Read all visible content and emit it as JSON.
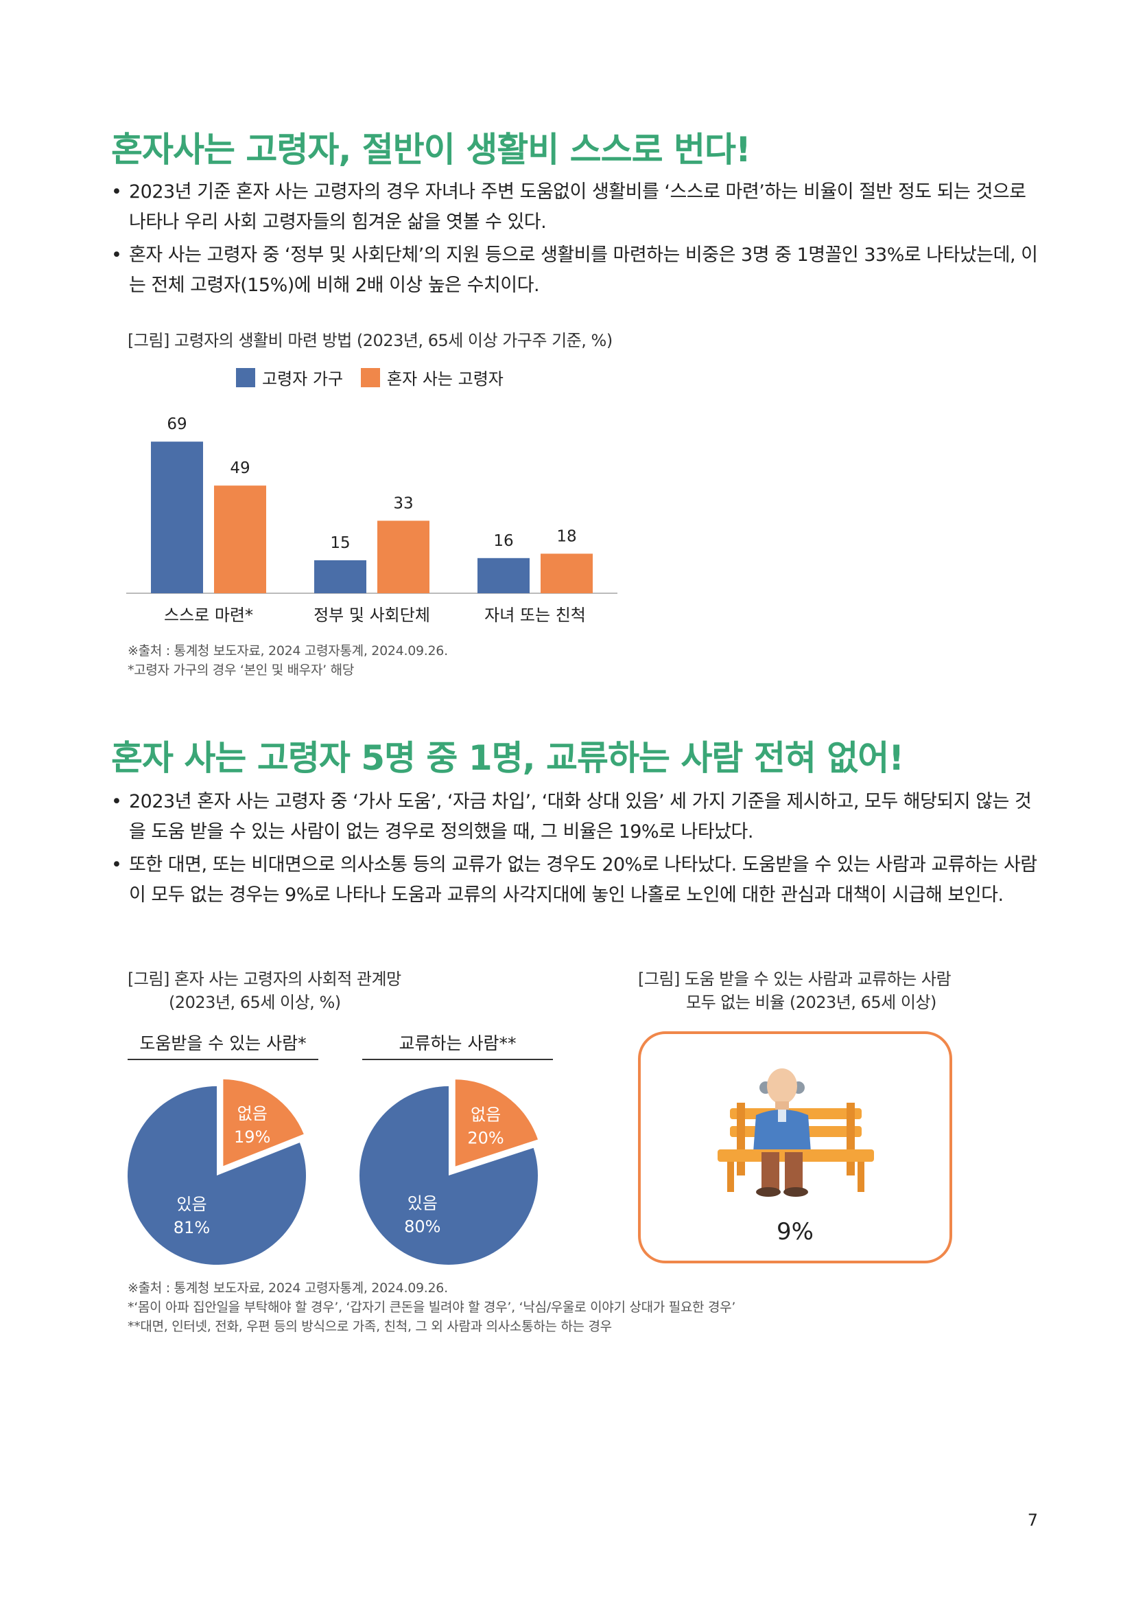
{
  "section1": {
    "heading": "혼자사는 고령자, 절반이 생활비 스스로 번다!",
    "bullets": [
      "2023년 기준 혼자 사는 고령자의 경우 자녀나 주변 도움없이 생활비를 ‘스스로 마련’하는 비율이 절반 정도 되는 것으로 나타나 우리 사회 고령자들의 힘겨운 삶을 엿볼 수 있다.",
      "혼자 사는 고령자 중 ‘정부 및 사회단체’의 지원 등으로 생활비를 마련하는 비중은 3명 중 1명꼴인 33%로 나타났는데, 이는 전체 고령자(15%)에 비해 2배 이상 높은 수치이다."
    ],
    "figure_caption": "[그림] 고령자의 생활비 마련 방법 (2023년, 65세 이상 가구주 기준, %)",
    "notes": [
      "※출처 : 통계청 보도자료, 2024 고령자통계, 2024.09.26.",
      "*고령자 가구의 경우 ‘본인 및 배우자’ 해당"
    ]
  },
  "chart_data": [
    {
      "type": "bar",
      "categories": [
        "스스로 마련*",
        "정부 및 사회단체",
        "자녀 또는 친척"
      ],
      "series": [
        {
          "name": "고령자 가구",
          "values": [
            69,
            15,
            16
          ],
          "color": "#4a6ea8"
        },
        {
          "name": "혼자 사는 고령자",
          "values": [
            49,
            33,
            18
          ],
          "color": "#f0874a"
        }
      ],
      "ylim": [
        0,
        75
      ],
      "legend": "top",
      "grid": false
    },
    {
      "type": "pie",
      "title": "도움받을 수 있는 사람*",
      "slices": [
        {
          "label": "없음",
          "value": 19,
          "text": "19%",
          "color": "#f0874a"
        },
        {
          "label": "있음",
          "value": 81,
          "text": "81%",
          "color": "#4a6ea8"
        }
      ]
    },
    {
      "type": "pie",
      "title": "교류하는 사람**",
      "slices": [
        {
          "label": "없음",
          "value": 20,
          "text": "20%",
          "color": "#f0874a"
        },
        {
          "label": "있음",
          "value": 80,
          "text": "80%",
          "color": "#4a6ea8"
        }
      ]
    }
  ],
  "section2": {
    "heading": "혼자 사는 고령자 5명 중 1명, 교류하는 사람 전혀 없어!",
    "bullets": [
      "2023년 혼자 사는 고령자 중 ‘가사 도움’, ‘자금 차입’, ‘대화 상대 있음’ 세 가지 기준을 제시하고, 모두 해당되지 않는 것을 도움 받을 수 있는 사람이 없는 경우로 정의했을 때, 그 비율은 19%로 나타났다.",
      "또한 대면, 또는 비대면으로 의사소통 등의 교류가 없는 경우도 20%로 나타났다. 도움받을 수 있는 사람과 교류하는 사람이 모두 없는 경우는 9%로 나타나 도움과 교류의 사각지대에 놓인 나홀로 노인에 대한 관심과 대책이 시급해 보인다."
    ],
    "fig_left_caption": [
      "[그림] 혼자 사는 고령자의 사회적 관계망",
      "(2023년, 65세 이상, %)"
    ],
    "fig_right_caption": [
      "[그림] 도움 받을 수 있는 사람과 교류하는 사람",
      "모두 없는 비율 (2023년, 65세 이상)"
    ],
    "card_value": "9%",
    "notes": [
      "※출처 : 통계청 보도자료, 2024 고령자통계, 2024.09.26.",
      "*‘몸이 아파 집안일을 부탁해야 할 경우’, ‘갑자기 큰돈을 빌려야 할 경우’, ‘낙심/우울로 이야기 상대가 필요한 경우’",
      "**대면, 인터넷, 전화, 우편 등의 방식으로 가족, 친척, 그 외 사람과 의사소통하는 하는 경우"
    ]
  },
  "colors": {
    "heading": "#3aa676",
    "blue": "#4a6ea8",
    "orange": "#f0874a"
  },
  "page_number": "7"
}
